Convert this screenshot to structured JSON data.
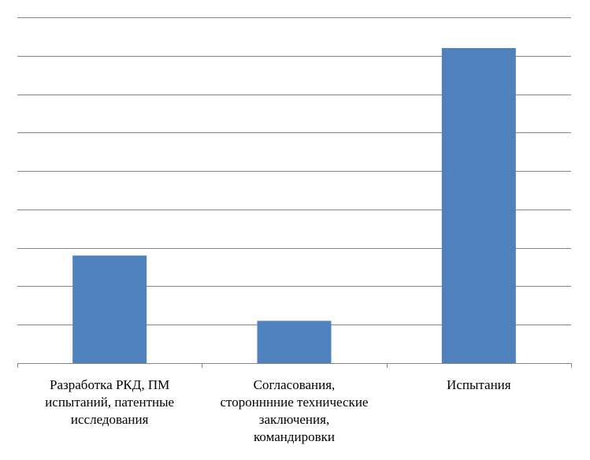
{
  "chart_data": {
    "type": "bar",
    "categories": [
      "Разработка РКД, ПМ испытаний, патентные исследования",
      "Согласования, сторонннние технические заключения, командировки",
      "Испытания"
    ],
    "category_lines": [
      [
        "Разработка РКД, ПМ",
        "испытаний, патентные",
        "исследования"
      ],
      [
        "Согласования,",
        "сторонннние технические",
        "заключения,",
        "командировки"
      ],
      [
        "Испытания"
      ]
    ],
    "values": [
      2.8,
      1.1,
      8.2
    ],
    "ylim": [
      0,
      9
    ],
    "ygrid_step": 1,
    "grid": true,
    "legend": "none",
    "title": "",
    "xlabel": "",
    "ylabel": "",
    "bar_color": "#4F81BD",
    "grid_color": "#868686"
  }
}
